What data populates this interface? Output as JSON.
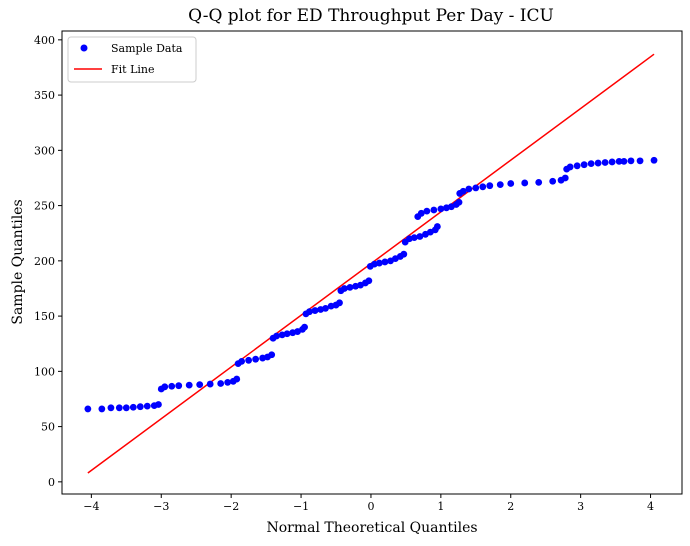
{
  "chart_data": {
    "type": "scatter",
    "title": "Q-Q plot for ED Throughput Per Day - ICU",
    "xlabel": "Normal Theoretical Quantiles",
    "ylabel": "Sample Quantiles",
    "xlim": [
      -4.42,
      4.45
    ],
    "ylim": [
      -11,
      408
    ],
    "x_ticks": [
      -4,
      -3,
      -2,
      -1,
      0,
      1,
      2,
      3,
      4
    ],
    "y_ticks": [
      0,
      50,
      100,
      150,
      200,
      250,
      300,
      350,
      400
    ],
    "grid": false,
    "legend": {
      "position": "top-left",
      "entries": [
        "Sample Data",
        "Fit Line"
      ]
    },
    "colors": {
      "sample": "#0000ff",
      "fit": "#ff0000"
    },
    "fit_line": {
      "x": [
        -4.05,
        4.05
      ],
      "y": [
        8,
        387
      ]
    },
    "series": [
      {
        "name": "Sample Data",
        "kind": "scatter",
        "points": [
          [
            -4.05,
            66
          ],
          [
            -3.85,
            66
          ],
          [
            -3.72,
            67
          ],
          [
            -3.6,
            67
          ],
          [
            -3.5,
            67
          ],
          [
            -3.4,
            67.5
          ],
          [
            -3.3,
            68
          ],
          [
            -3.2,
            68.5
          ],
          [
            -3.1,
            69
          ],
          [
            -3.04,
            70
          ],
          [
            -3.0,
            84
          ],
          [
            -2.95,
            86
          ],
          [
            -2.85,
            86.5
          ],
          [
            -2.75,
            87
          ],
          [
            -2.6,
            87.5
          ],
          [
            -2.45,
            88
          ],
          [
            -2.3,
            88.5
          ],
          [
            -2.15,
            89
          ],
          [
            -2.05,
            90
          ],
          [
            -1.97,
            91
          ],
          [
            -1.92,
            93
          ],
          [
            -1.9,
            107
          ],
          [
            -1.85,
            109
          ],
          [
            -1.75,
            110
          ],
          [
            -1.65,
            111
          ],
          [
            -1.55,
            112
          ],
          [
            -1.48,
            113
          ],
          [
            -1.42,
            115
          ],
          [
            -1.4,
            130
          ],
          [
            -1.35,
            132
          ],
          [
            -1.27,
            133
          ],
          [
            -1.2,
            134
          ],
          [
            -1.12,
            135
          ],
          [
            -1.05,
            136
          ],
          [
            -0.98,
            138
          ],
          [
            -0.95,
            140
          ],
          [
            -0.93,
            152
          ],
          [
            -0.88,
            154
          ],
          [
            -0.8,
            155
          ],
          [
            -0.72,
            156
          ],
          [
            -0.65,
            157
          ],
          [
            -0.57,
            159
          ],
          [
            -0.5,
            160
          ],
          [
            -0.45,
            162
          ],
          [
            -0.43,
            173
          ],
          [
            -0.38,
            175
          ],
          [
            -0.3,
            176
          ],
          [
            -0.22,
            177
          ],
          [
            -0.15,
            178
          ],
          [
            -0.08,
            180
          ],
          [
            -0.03,
            182
          ],
          [
            -0.01,
            195
          ],
          [
            0.05,
            197
          ],
          [
            0.12,
            198
          ],
          [
            0.2,
            199
          ],
          [
            0.28,
            200
          ],
          [
            0.35,
            202
          ],
          [
            0.42,
            204
          ],
          [
            0.47,
            206
          ],
          [
            0.49,
            217
          ],
          [
            0.55,
            220
          ],
          [
            0.62,
            221
          ],
          [
            0.7,
            222
          ],
          [
            0.78,
            224
          ],
          [
            0.85,
            226
          ],
          [
            0.92,
            228
          ],
          [
            0.95,
            231
          ],
          [
            0.67,
            240
          ],
          [
            0.72,
            243
          ],
          [
            0.8,
            245
          ],
          [
            0.9,
            246
          ],
          [
            1.0,
            247
          ],
          [
            1.08,
            248
          ],
          [
            1.15,
            249
          ],
          [
            1.22,
            251
          ],
          [
            1.26,
            253
          ],
          [
            1.27,
            261
          ],
          [
            1.32,
            263
          ],
          [
            1.4,
            265
          ],
          [
            1.5,
            266
          ],
          [
            1.6,
            267
          ],
          [
            1.7,
            268
          ],
          [
            1.85,
            269
          ],
          [
            2.0,
            270
          ],
          [
            2.2,
            270.5
          ],
          [
            2.4,
            271
          ],
          [
            2.6,
            272
          ],
          [
            2.72,
            273
          ],
          [
            2.78,
            275
          ],
          [
            2.8,
            283
          ],
          [
            2.85,
            285
          ],
          [
            2.95,
            286
          ],
          [
            3.05,
            287
          ],
          [
            3.15,
            288
          ],
          [
            3.25,
            288.5
          ],
          [
            3.35,
            289
          ],
          [
            3.45,
            289.5
          ],
          [
            3.55,
            290
          ],
          [
            3.62,
            290
          ],
          [
            3.72,
            290.5
          ],
          [
            3.85,
            290.5
          ],
          [
            4.05,
            291
          ]
        ]
      },
      {
        "name": "Fit Line",
        "kind": "line",
        "x": [
          -4.05,
          4.05
        ],
        "y": [
          8,
          387
        ]
      }
    ]
  }
}
